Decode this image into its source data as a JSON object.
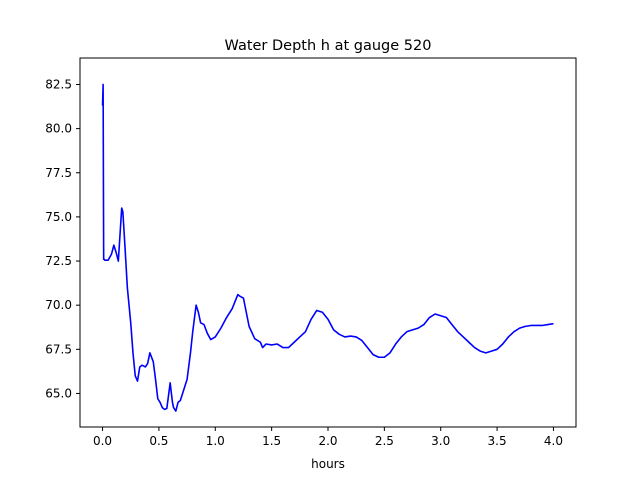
{
  "chart_data": {
    "type": "line",
    "title": "Water Depth h at gauge 520",
    "xlabel": "hours",
    "ylabel": "",
    "xlim": [
      -0.2,
      4.2
    ],
    "ylim": [
      63.1,
      84.0
    ],
    "xticks": [
      0.0,
      0.5,
      1.0,
      1.5,
      2.0,
      2.5,
      3.0,
      3.5,
      4.0
    ],
    "xtick_labels": [
      "0.0",
      "0.5",
      "1.0",
      "1.5",
      "2.0",
      "2.5",
      "3.0",
      "3.5",
      "4.0"
    ],
    "yticks": [
      65.0,
      67.5,
      70.0,
      72.5,
      75.0,
      77.5,
      80.0,
      82.5
    ],
    "ytick_labels": [
      "65.0",
      "67.5",
      "70.0",
      "72.5",
      "75.0",
      "77.5",
      "80.0",
      "82.5"
    ],
    "grid": false,
    "line_color": "#0000ff",
    "series": [
      {
        "x": [
          0.0,
          0.005,
          0.01,
          0.015,
          0.02,
          0.05,
          0.08,
          0.1,
          0.12,
          0.14,
          0.16,
          0.17,
          0.18,
          0.2,
          0.22,
          0.25,
          0.27,
          0.29,
          0.31,
          0.33,
          0.35,
          0.38,
          0.4,
          0.42,
          0.45,
          0.47,
          0.49,
          0.51,
          0.53,
          0.55,
          0.57,
          0.6,
          0.62,
          0.63,
          0.65,
          0.67,
          0.69,
          0.71,
          0.73,
          0.75,
          0.78,
          0.8,
          0.83,
          0.85,
          0.87,
          0.9,
          0.93,
          0.96,
          1.0,
          1.05,
          1.1,
          1.15,
          1.2,
          1.22,
          1.25,
          1.3,
          1.35,
          1.4,
          1.42,
          1.45,
          1.5,
          1.55,
          1.6,
          1.65,
          1.7,
          1.75,
          1.8,
          1.85,
          1.9,
          1.95,
          2.0,
          2.05,
          2.1,
          2.15,
          2.2,
          2.25,
          2.3,
          2.35,
          2.4,
          2.45,
          2.5,
          2.55,
          2.6,
          2.65,
          2.7,
          2.75,
          2.8,
          2.85,
          2.9,
          2.95,
          3.0,
          3.05,
          3.1,
          3.15,
          3.2,
          3.25,
          3.3,
          3.35,
          3.4,
          3.45,
          3.5,
          3.55,
          3.6,
          3.65,
          3.7,
          3.75,
          3.8,
          3.85,
          3.9,
          3.95,
          4.0
        ],
        "y": [
          81.3,
          82.5,
          72.6,
          72.6,
          72.55,
          72.55,
          72.9,
          73.4,
          73.0,
          72.5,
          74.5,
          75.5,
          75.3,
          73.2,
          71.0,
          69.0,
          67.3,
          66.0,
          65.7,
          66.5,
          66.6,
          66.5,
          66.7,
          67.3,
          66.8,
          65.8,
          64.7,
          64.5,
          64.2,
          64.1,
          64.15,
          65.6,
          64.5,
          64.2,
          64.0,
          64.5,
          64.6,
          65.0,
          65.4,
          65.8,
          67.3,
          68.5,
          70.0,
          69.6,
          69.0,
          68.9,
          68.4,
          68.05,
          68.2,
          68.7,
          69.3,
          69.8,
          70.6,
          70.5,
          70.4,
          68.8,
          68.1,
          67.9,
          67.6,
          67.8,
          67.75,
          67.8,
          67.6,
          67.6,
          67.9,
          68.2,
          68.5,
          69.2,
          69.7,
          69.6,
          69.2,
          68.6,
          68.35,
          68.2,
          68.25,
          68.2,
          68.0,
          67.6,
          67.2,
          67.05,
          67.05,
          67.3,
          67.8,
          68.2,
          68.5,
          68.6,
          68.7,
          68.9,
          69.3,
          69.5,
          69.4,
          69.3,
          68.9,
          68.5,
          68.2,
          67.9,
          67.6,
          67.4,
          67.3,
          67.4,
          67.5,
          67.8,
          68.2,
          68.5,
          68.7,
          68.8,
          68.85,
          68.85,
          68.85,
          68.9,
          68.95
        ]
      }
    ]
  }
}
